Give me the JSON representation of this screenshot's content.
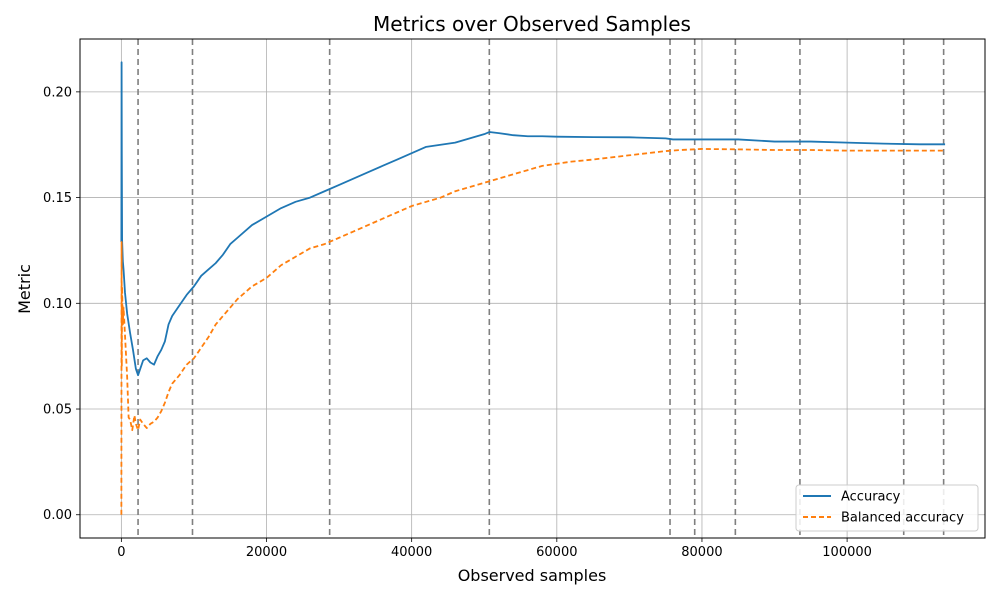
{
  "chart_data": {
    "type": "line",
    "title": "Metrics over Observed Samples",
    "xlabel": "Observed samples",
    "ylabel": "Metric",
    "xlim": [
      -5700,
      119000
    ],
    "ylim": [
      -0.011,
      0.225
    ],
    "x_ticks": [
      0,
      20000,
      40000,
      60000,
      80000,
      100000
    ],
    "x_tick_labels": [
      "0",
      "20000",
      "40000",
      "60000",
      "80000",
      "100000"
    ],
    "y_ticks": [
      0.0,
      0.05,
      0.1,
      0.15,
      0.2
    ],
    "y_tick_labels": [
      "0.00",
      "0.05",
      "0.10",
      "0.15",
      "0.20"
    ],
    "grid": true,
    "legend_position": "lower-right",
    "vlines": [
      2300,
      9800,
      28700,
      50700,
      75600,
      79000,
      84600,
      93500,
      107800,
      113300
    ],
    "vline_color": "#7f7f7f",
    "series": [
      {
        "name": "Accuracy",
        "color": "#1f77b4",
        "style": "solid",
        "x": [
          0,
          30,
          60,
          100,
          200,
          300,
          500,
          800,
          1200,
          1600,
          2000,
          2300,
          2600,
          3000,
          3500,
          4000,
          4500,
          5000,
          5500,
          6000,
          6500,
          7000,
          8000,
          9000,
          10000,
          11000,
          12000,
          13000,
          14000,
          15000,
          16000,
          18000,
          20000,
          22000,
          24000,
          26000,
          28000,
          30000,
          32000,
          34000,
          36000,
          38000,
          40000,
          42000,
          44000,
          46000,
          48000,
          50000,
          50700,
          52000,
          54000,
          56000,
          58000,
          60000,
          65000,
          70000,
          75000,
          76000,
          80000,
          85000,
          90000,
          95000,
          100000,
          105000,
          110000,
          113500
        ],
        "y": [
          0.129,
          0.214,
          0.17,
          0.13,
          0.12,
          0.116,
          0.105,
          0.095,
          0.086,
          0.078,
          0.069,
          0.066,
          0.069,
          0.073,
          0.074,
          0.072,
          0.071,
          0.075,
          0.078,
          0.082,
          0.09,
          0.094,
          0.099,
          0.104,
          0.108,
          0.113,
          0.116,
          0.119,
          0.123,
          0.128,
          0.131,
          0.137,
          0.141,
          0.145,
          0.148,
          0.15,
          0.153,
          0.156,
          0.159,
          0.162,
          0.165,
          0.168,
          0.171,
          0.174,
          0.175,
          0.176,
          0.178,
          0.18,
          0.181,
          0.1805,
          0.1795,
          0.179,
          0.179,
          0.1788,
          0.1786,
          0.1785,
          0.178,
          0.1775,
          0.1775,
          0.1775,
          0.1765,
          0.1765,
          0.176,
          0.1755,
          0.1752,
          0.1752
        ]
      },
      {
        "name": "Balanced accuracy",
        "color": "#ff7f0e",
        "style": "dashed",
        "x": [
          0,
          30,
          60,
          100,
          200,
          300,
          500,
          800,
          1000,
          1200,
          1500,
          1800,
          2000,
          2300,
          2600,
          3000,
          3500,
          4000,
          4500,
          5000,
          5500,
          6000,
          6500,
          7000,
          8000,
          9000,
          10000,
          11000,
          12000,
          13000,
          14000,
          15000,
          16000,
          18000,
          20000,
          22000,
          24000,
          26000,
          28000,
          30000,
          32000,
          34000,
          36000,
          38000,
          40000,
          42000,
          44000,
          46000,
          48000,
          50000,
          52000,
          54000,
          56000,
          58000,
          60000,
          62000,
          65000,
          70000,
          75000,
          77000,
          80000,
          85000,
          90000,
          95000,
          100000,
          105000,
          110000,
          113500
        ],
        "y": [
          0.0,
          0.129,
          0.07,
          0.108,
          0.09,
          0.098,
          0.085,
          0.065,
          0.046,
          0.045,
          0.04,
          0.047,
          0.043,
          0.04,
          0.045,
          0.043,
          0.041,
          0.043,
          0.044,
          0.046,
          0.049,
          0.053,
          0.058,
          0.062,
          0.066,
          0.071,
          0.074,
          0.079,
          0.084,
          0.09,
          0.094,
          0.098,
          0.102,
          0.108,
          0.112,
          0.118,
          0.122,
          0.126,
          0.128,
          0.131,
          0.134,
          0.137,
          0.14,
          0.143,
          0.146,
          0.148,
          0.15,
          0.153,
          0.155,
          0.157,
          0.159,
          0.161,
          0.163,
          0.165,
          0.166,
          0.167,
          0.168,
          0.17,
          0.172,
          0.1725,
          0.173,
          0.1728,
          0.1725,
          0.1725,
          0.1722,
          0.1722,
          0.1722,
          0.1722
        ]
      }
    ]
  }
}
